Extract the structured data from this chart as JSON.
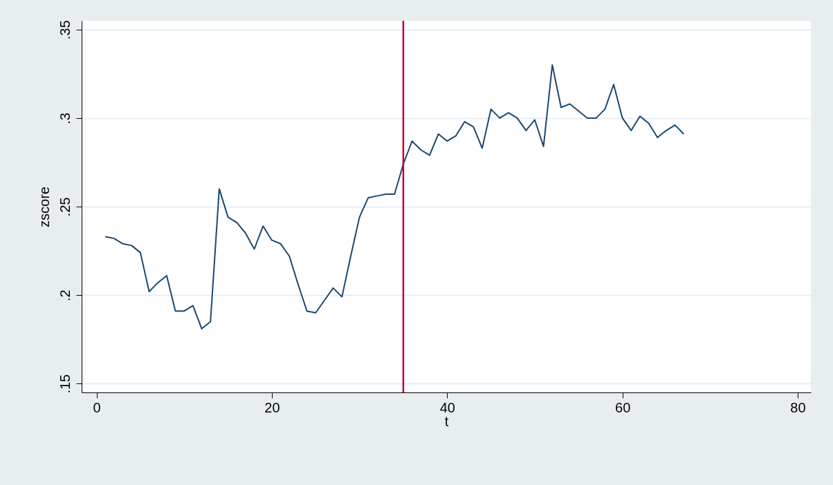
{
  "chart_data": {
    "type": "line",
    "xlabel": "t",
    "ylabel": "zscore",
    "x": [
      1,
      2,
      3,
      4,
      5,
      6,
      7,
      8,
      9,
      10,
      11,
      12,
      13,
      14,
      15,
      16,
      17,
      18,
      19,
      20,
      21,
      22,
      23,
      24,
      25,
      26,
      27,
      28,
      29,
      30,
      31,
      32,
      33,
      34,
      35,
      36,
      37,
      38,
      39,
      40,
      41,
      42,
      43,
      44,
      45,
      46,
      47,
      48,
      49,
      50,
      51,
      52,
      53,
      54,
      55,
      56,
      57,
      58,
      59,
      60,
      61,
      62,
      63,
      64,
      65,
      66,
      67
    ],
    "series": [
      {
        "color": "#1a476f",
        "values": [
          0.233,
          0.232,
          0.229,
          0.228,
          0.224,
          0.202,
          0.207,
          0.211,
          0.191,
          0.191,
          0.194,
          0.181,
          0.185,
          0.26,
          0.244,
          0.241,
          0.235,
          0.226,
          0.239,
          0.231,
          0.229,
          0.222,
          0.206,
          0.191,
          0.19,
          0.197,
          0.204,
          0.199,
          0.222,
          0.244,
          0.255,
          0.256,
          0.257,
          0.257,
          0.274,
          0.287,
          0.282,
          0.279,
          0.291,
          0.287,
          0.29,
          0.298,
          0.295,
          0.283,
          0.305,
          0.3,
          0.303,
          0.3,
          0.293,
          0.299,
          0.284,
          0.33,
          0.306,
          0.308,
          0.304,
          0.3,
          0.3,
          0.305,
          0.319,
          0.3,
          0.293,
          0.301,
          0.297,
          0.289,
          0.293,
          0.296,
          0.291
        ]
      }
    ],
    "xlim": [
      -1.7,
      81.5
    ],
    "xticks": [
      0,
      20,
      40,
      60,
      80
    ],
    "ylim": [
      0.145,
      0.355
    ],
    "yticks": [
      {
        "value": 0.15,
        "label": ".15"
      },
      {
        "value": 0.2,
        "label": ".2"
      },
      {
        "value": 0.25,
        "label": ".25"
      },
      {
        "value": 0.3,
        "label": ".3"
      },
      {
        "value": 0.35,
        "label": ".35"
      }
    ],
    "grid": "y",
    "line_style": "solid",
    "marker": "none",
    "ref_lines": [
      {
        "axis": "x",
        "value": 35,
        "color": "#c10534"
      }
    ]
  }
}
